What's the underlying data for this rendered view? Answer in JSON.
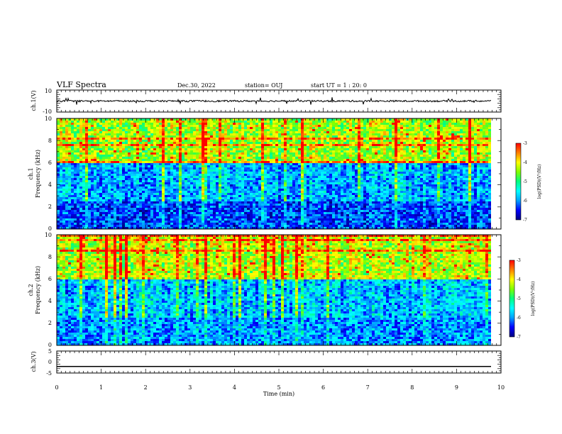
{
  "header": {
    "title": "VLF Spectra",
    "date": "Dec.30, 2022",
    "station": "station= OUJ",
    "start_ut": "start  UT =   1 : 20: 0"
  },
  "colorbar": {
    "label": "log(PSD)(V²/Hz)",
    "tick_labels": [
      "-3",
      "-4",
      "-5",
      "-6",
      "-7"
    ],
    "range": [
      -7,
      -3
    ],
    "colormap": [
      "#000080",
      "#0000ff",
      "#00a0ff",
      "#00ffff",
      "#00ff80",
      "#80ff00",
      "#ffff00",
      "#ff8000",
      "#ff0000",
      "#ffffff"
    ]
  },
  "chart_data": [
    {
      "type": "line",
      "ylabel": "ch.1(V)",
      "ylim": [
        -10,
        10
      ],
      "y_ticks": [
        "10",
        "-10"
      ],
      "xlim": [
        0,
        10
      ],
      "description_values": {
        "baseline_v": 0,
        "noise_amplitude_v": 1.5
      }
    },
    {
      "type": "heatmap",
      "channel_label": "ch.1",
      "ylabel": "Frequency  (kHz)",
      "ylim": [
        0,
        10
      ],
      "y_ticks": [
        "0",
        "2",
        "4",
        "6",
        "8",
        "10"
      ],
      "xlim": [
        0,
        10
      ],
      "zlim": [
        -7,
        -3
      ],
      "bands": [
        {
          "f_min": 0.0,
          "f_max": 2.5,
          "log_psd": -6.3
        },
        {
          "f_min": 2.5,
          "f_max": 6.0,
          "log_psd": -5.9
        },
        {
          "f_min": 6.0,
          "f_max": 10.0,
          "log_psd": -4.4
        }
      ]
    },
    {
      "type": "heatmap",
      "channel_label": "ch.2",
      "ylabel": "Frequency  (kHz)",
      "ylim": [
        0,
        10
      ],
      "y_ticks": [
        "0",
        "2",
        "4",
        "6",
        "8",
        "10"
      ],
      "xlim": [
        0,
        10
      ],
      "zlim": [
        -7,
        -3
      ],
      "bands": [
        {
          "f_min": 0.0,
          "f_max": 2.5,
          "log_psd": -6.0
        },
        {
          "f_min": 2.5,
          "f_max": 6.0,
          "log_psd": -5.8
        },
        {
          "f_min": 6.0,
          "f_max": 10.0,
          "log_psd": -4.3
        }
      ]
    },
    {
      "type": "line",
      "ylabel": "ch.3(V)",
      "ylim": [
        -5,
        5
      ],
      "y_ticks": [
        "5",
        "0",
        "-5"
      ],
      "xlim": [
        0,
        10
      ],
      "description_values": {
        "baseline_v": -2,
        "noise_amplitude_v": 0
      }
    }
  ],
  "x_axis": {
    "label": "Time  (min)",
    "ticks": [
      "0",
      "1",
      "2",
      "3",
      "4",
      "5",
      "6",
      "7",
      "8",
      "9",
      "10"
    ],
    "range": [
      0,
      10
    ]
  }
}
